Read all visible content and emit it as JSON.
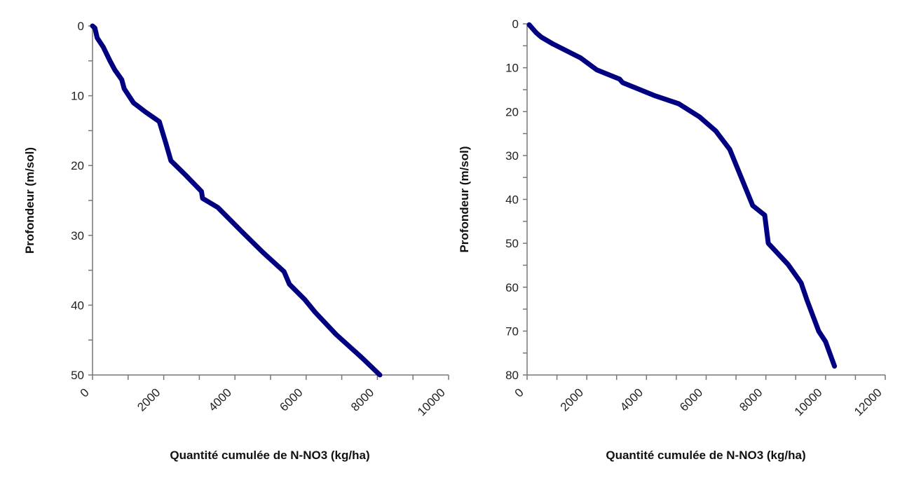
{
  "chart_data": [
    {
      "type": "line",
      "title": "",
      "xlabel": "Quantité cumulée de N-NO3 (kg/ha)",
      "ylabel": "Profondeur (m/sol)",
      "xlim": [
        0,
        10000
      ],
      "ylim": [
        0,
        50
      ],
      "y_inverted": true,
      "xticks": [
        0,
        2000,
        4000,
        6000,
        8000,
        10000
      ],
      "yticks": [
        0,
        10,
        20,
        30,
        40,
        50
      ],
      "grid": false,
      "line_color": "#000080",
      "series": [
        {
          "x": [
            0,
            66,
            130,
            300,
            490,
            625,
            820,
            890,
            1150,
            1480,
            1875,
            2070,
            2200,
            2600,
            3060,
            3090,
            3520,
            4200,
            4800,
            5380,
            5530,
            5960,
            6250,
            6840,
            7560,
            8070
          ],
          "y": [
            0,
            0.3,
            1.7,
            3,
            5,
            6.3,
            7.7,
            9,
            11,
            12.3,
            13.7,
            17,
            19.3,
            21.3,
            23.7,
            24.7,
            26,
            29.5,
            32.5,
            35.2,
            37,
            39.2,
            41,
            44.2,
            47.5,
            50
          ]
        }
      ]
    },
    {
      "type": "line",
      "title": "",
      "xlabel": "Quantité cumulée de N-NO3 (kg/ha)",
      "ylabel": "Profondeur (m/sol)",
      "xlim": [
        0,
        12000
      ],
      "ylim": [
        0,
        80
      ],
      "y_inverted": true,
      "xticks": [
        0,
        2000,
        4000,
        6000,
        8000,
        10000,
        12000
      ],
      "yticks": [
        0,
        10,
        20,
        30,
        40,
        50,
        60,
        70,
        80
      ],
      "grid": false,
      "line_color": "#000080",
      "series": [
        {
          "x": [
            70,
            300,
            470,
            870,
            1800,
            2340,
            3100,
            3200,
            4290,
            5080,
            5780,
            6320,
            6790,
            7560,
            7960,
            8080,
            8740,
            9180,
            9370,
            9770,
            10000,
            10300
          ],
          "y": [
            0.2,
            2,
            3,
            4.6,
            7.8,
            10.5,
            12.6,
            13.4,
            16.4,
            18.2,
            21.2,
            24.4,
            28.6,
            41.4,
            43.6,
            50,
            54.8,
            59,
            62.8,
            70,
            72.4,
            78
          ]
        }
      ]
    }
  ]
}
